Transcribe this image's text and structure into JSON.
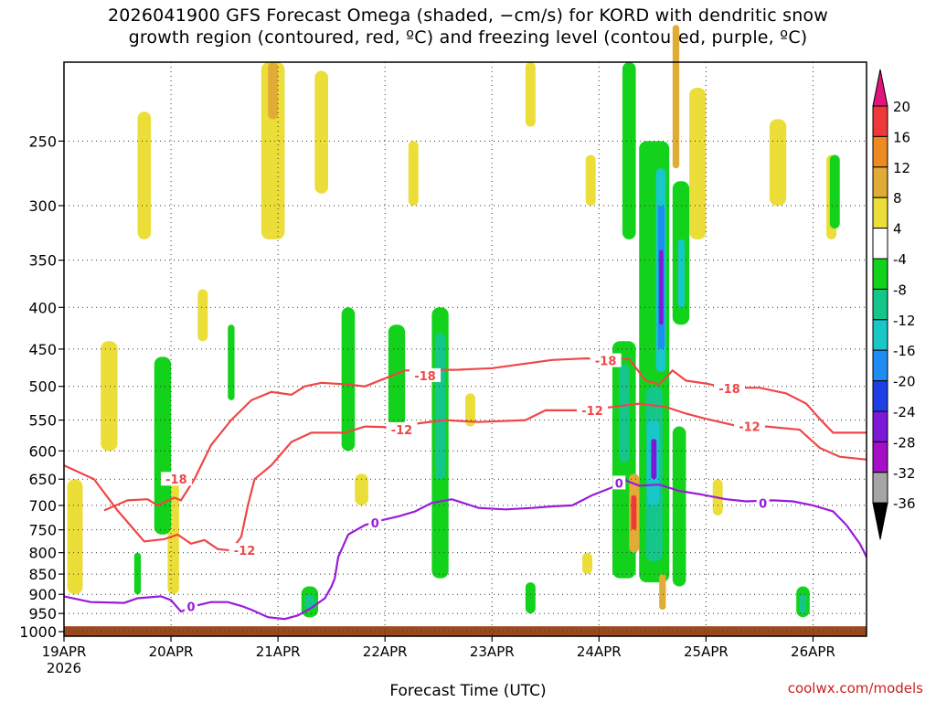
{
  "header": {
    "title_line1": "2026041900 GFS Forecast Omega (shaded, −cm/s) for KORD with dendritic snow",
    "title_line2": "growth region (contoured, red, ºC) and freezing level (contoured, purple, ºC)"
  },
  "footer": {
    "credit": "coolwx.com/models",
    "xlabel": "Forecast Time (UTC)"
  },
  "chart_data": {
    "type": "heatmap",
    "title": "2026041900 GFS Forecast Omega (shaded, −cm/s) for KORD with dendritic snow growth region (contoured, red, ºC) and freezing level (contoured, purple, ºC)",
    "xlabel": "Forecast Time (UTC)",
    "ylabel": "",
    "y_scale": "log-pressure, inverted",
    "xlim": [
      "2026-04-19T00Z",
      "2026-04-26T12Z"
    ],
    "ylim_hPa": [
      1013,
      200
    ],
    "x_ticks": [
      "19APR",
      "20APR",
      "21APR",
      "22APR",
      "23APR",
      "24APR",
      "25APR",
      "26APR"
    ],
    "x_tick_sublabel": "2026",
    "y_ticks": [
      250,
      300,
      350,
      400,
      450,
      500,
      550,
      600,
      650,
      700,
      750,
      800,
      850,
      900,
      950,
      1000
    ],
    "grid": true,
    "colorbar": {
      "labels": [
        20,
        16,
        12,
        8,
        4,
        -4,
        -8,
        -12,
        -16,
        -20,
        -24,
        -28,
        -32,
        -36
      ],
      "bins": [
        {
          "from": 20,
          "to": null,
          "color": "#e0147a"
        },
        {
          "from": 16,
          "to": 20,
          "color": "#f0373a"
        },
        {
          "from": 12,
          "to": 16,
          "color": "#ee8a22"
        },
        {
          "from": 8,
          "to": 12,
          "color": "#e1ac36"
        },
        {
          "from": 4,
          "to": 8,
          "color": "#ebde39"
        },
        {
          "from": -4,
          "to": 4,
          "color": "#ffffff"
        },
        {
          "from": -8,
          "to": -4,
          "color": "#12d21c"
        },
        {
          "from": -12,
          "to": -8,
          "color": "#15c68b"
        },
        {
          "from": -16,
          "to": -12,
          "color": "#18c7c7"
        },
        {
          "from": -20,
          "to": -16,
          "color": "#1e8cf2"
        },
        {
          "from": -24,
          "to": -20,
          "color": "#1e3ee6"
        },
        {
          "from": -28,
          "to": -24,
          "color": "#7d18d8"
        },
        {
          "from": -32,
          "to": -28,
          "color": "#a50fc8"
        },
        {
          "from": -36,
          "to": -32,
          "color": "#a5a5a5"
        },
        {
          "from": null,
          "to": -36,
          "color": "#000000"
        }
      ]
    },
    "contours": [
      {
        "label": "-18",
        "color": "#f04646",
        "points": [
          [
            0.6,
            710
          ],
          [
            0.95,
            690
          ],
          [
            1.25,
            688
          ],
          [
            1.4,
            700
          ],
          [
            1.65,
            685
          ],
          [
            1.75,
            690
          ],
          [
            1.95,
            650
          ],
          [
            2.2,
            590
          ],
          [
            2.5,
            550
          ],
          [
            2.8,
            520
          ],
          [
            3.1,
            508
          ],
          [
            3.4,
            512
          ],
          [
            3.6,
            500
          ],
          [
            3.85,
            495
          ],
          [
            4.2,
            497
          ],
          [
            4.5,
            500
          ],
          [
            5.1,
            478
          ],
          [
            5.9,
            477
          ],
          [
            6.4,
            475
          ],
          [
            7.3,
            464
          ],
          [
            7.8,
            462
          ],
          [
            8.45,
            463
          ],
          [
            8.7,
            492
          ],
          [
            8.9,
            497
          ],
          [
            9.1,
            478
          ],
          [
            9.3,
            492
          ],
          [
            9.6,
            496
          ],
          [
            9.9,
            502
          ],
          [
            10.4,
            502
          ],
          [
            10.8,
            510
          ],
          [
            11.1,
            525
          ],
          [
            11.3,
            548
          ],
          [
            11.5,
            570
          ],
          [
            12.0,
            570
          ]
        ]
      },
      {
        "label": "-12",
        "color": "#f04646",
        "points": [
          [
            0,
            625
          ],
          [
            0.45,
            650
          ],
          [
            0.8,
            710
          ],
          [
            1.2,
            775
          ],
          [
            1.5,
            770
          ],
          [
            1.7,
            760
          ],
          [
            1.9,
            780
          ],
          [
            2.1,
            772
          ],
          [
            2.3,
            792
          ],
          [
            2.5,
            795
          ],
          [
            2.65,
            765
          ],
          [
            2.75,
            700
          ],
          [
            2.85,
            650
          ],
          [
            3.1,
            625
          ],
          [
            3.4,
            585
          ],
          [
            3.7,
            570
          ],
          [
            4.2,
            570
          ],
          [
            4.5,
            560
          ],
          [
            5.1,
            562
          ],
          [
            5.3,
            555
          ],
          [
            5.7,
            550
          ],
          [
            6.2,
            553
          ],
          [
            6.9,
            550
          ],
          [
            7.2,
            535
          ],
          [
            7.8,
            535
          ],
          [
            8.2,
            530
          ],
          [
            8.6,
            525
          ],
          [
            9.0,
            530
          ],
          [
            9.3,
            540
          ],
          [
            9.6,
            548
          ],
          [
            10.1,
            560
          ],
          [
            10.5,
            560
          ],
          [
            11.0,
            565
          ],
          [
            11.3,
            595
          ],
          [
            11.6,
            610
          ],
          [
            12.0,
            615
          ]
        ]
      },
      {
        "label": "0",
        "color": "#9a1adb",
        "points": [
          [
            0,
            905
          ],
          [
            0.4,
            920
          ],
          [
            0.9,
            922
          ],
          [
            1.1,
            910
          ],
          [
            1.45,
            905
          ],
          [
            1.6,
            915
          ],
          [
            1.75,
            945
          ],
          [
            1.95,
            930
          ],
          [
            2.2,
            920
          ],
          [
            2.45,
            920
          ],
          [
            2.65,
            930
          ],
          [
            2.8,
            940
          ],
          [
            3.05,
            960
          ],
          [
            3.3,
            965
          ],
          [
            3.5,
            955
          ],
          [
            3.7,
            935
          ],
          [
            3.9,
            910
          ],
          [
            4.0,
            880
          ],
          [
            4.05,
            860
          ],
          [
            4.1,
            810
          ],
          [
            4.25,
            760
          ],
          [
            4.5,
            740
          ],
          [
            4.75,
            730
          ],
          [
            5.0,
            722
          ],
          [
            5.25,
            712
          ],
          [
            5.5,
            695
          ],
          [
            5.8,
            688
          ],
          [
            6.2,
            705
          ],
          [
            6.6,
            708
          ],
          [
            7.0,
            705
          ],
          [
            7.3,
            702
          ],
          [
            7.6,
            700
          ],
          [
            7.9,
            680
          ],
          [
            8.2,
            665
          ],
          [
            8.35,
            650
          ],
          [
            8.6,
            662
          ],
          [
            8.9,
            660
          ],
          [
            9.2,
            672
          ],
          [
            9.5,
            678
          ],
          [
            9.9,
            688
          ],
          [
            10.2,
            692
          ],
          [
            10.6,
            690
          ],
          [
            10.9,
            692
          ],
          [
            11.2,
            700
          ],
          [
            11.5,
            712
          ],
          [
            11.7,
            740
          ],
          [
            11.9,
            780
          ],
          [
            12.0,
            810
          ]
        ]
      }
    ],
    "contour_labels": [
      {
        "text": "-18",
        "x": 1.68,
        "y": 650
      },
      {
        "text": "-18",
        "x": 5.4,
        "y": 485
      },
      {
        "text": "-18",
        "x": 8.1,
        "y": 465
      },
      {
        "text": "-18",
        "x": 9.95,
        "y": 503
      },
      {
        "text": "-12",
        "x": 2.7,
        "y": 795
      },
      {
        "text": "-12",
        "x": 5.05,
        "y": 565
      },
      {
        "text": "-12",
        "x": 7.9,
        "y": 535
      },
      {
        "text": "-12",
        "x": 10.25,
        "y": 560
      },
      {
        "text": "0",
        "x": 1.9,
        "y": 932
      },
      {
        "text": "0",
        "x": 4.65,
        "y": 735
      },
      {
        "text": "0",
        "x": 8.3,
        "y": 657
      },
      {
        "text": "0",
        "x": 10.45,
        "y": 696
      }
    ],
    "omega_regions": [
      {
        "v": 6,
        "x0": 0.05,
        "x1": 0.28,
        "p0": 650,
        "p1": 900
      },
      {
        "v": 6,
        "x0": 0.55,
        "x1": 0.8,
        "p0": 440,
        "p1": 600
      },
      {
        "v": 6,
        "x0": 1.1,
        "x1": 1.3,
        "p0": 230,
        "p1": 330
      },
      {
        "v": 6,
        "x0": 1.55,
        "x1": 1.72,
        "p0": 640,
        "p1": 900
      },
      {
        "v": 6,
        "x0": 2.0,
        "x1": 2.15,
        "p0": 380,
        "p1": 440
      },
      {
        "v": 6,
        "x0": 2.95,
        "x1": 3.3,
        "p0": 200,
        "p1": 330
      },
      {
        "v": 10,
        "x0": 3.05,
        "x1": 3.2,
        "p0": 200,
        "p1": 235
      },
      {
        "v": 6,
        "x0": 3.75,
        "x1": 3.95,
        "p0": 205,
        "p1": 290
      },
      {
        "v": 6,
        "x0": 4.35,
        "x1": 4.55,
        "p0": 640,
        "p1": 700
      },
      {
        "v": 6,
        "x0": 5.15,
        "x1": 5.3,
        "p0": 250,
        "p1": 300
      },
      {
        "v": 6,
        "x0": 6.0,
        "x1": 6.15,
        "p0": 510,
        "p1": 560
      },
      {
        "v": 6,
        "x0": 6.9,
        "x1": 7.05,
        "p0": 200,
        "p1": 240
      },
      {
        "v": 6,
        "x0": 7.8,
        "x1": 7.95,
        "p0": 260,
        "p1": 300
      },
      {
        "v": 6,
        "x0": 7.75,
        "x1": 7.9,
        "p0": 800,
        "p1": 850
      },
      {
        "v": 6,
        "x0": 9.35,
        "x1": 9.6,
        "p0": 215,
        "p1": 330
      },
      {
        "v": 6,
        "x0": 10.55,
        "x1": 10.8,
        "p0": 235,
        "p1": 300
      },
      {
        "v": 6,
        "x0": 11.4,
        "x1": 11.55,
        "p0": 260,
        "p1": 330
      },
      {
        "v": 6,
        "x0": 9.7,
        "x1": 9.85,
        "p0": 650,
        "p1": 720
      },
      {
        "v": -6,
        "x0": 1.35,
        "x1": 1.6,
        "p0": 460,
        "p1": 760
      },
      {
        "v": -6,
        "x0": 1.05,
        "x1": 1.15,
        "p0": 800,
        "p1": 900
      },
      {
        "v": -6,
        "x0": 2.45,
        "x1": 2.55,
        "p0": 420,
        "p1": 520
      },
      {
        "v": -6,
        "x0": 3.55,
        "x1": 3.8,
        "p0": 880,
        "p1": 960
      },
      {
        "v": -10,
        "x0": 3.6,
        "x1": 3.75,
        "p0": 900,
        "p1": 940
      },
      {
        "v": -6,
        "x0": 4.15,
        "x1": 4.35,
        "p0": 400,
        "p1": 600
      },
      {
        "v": -6,
        "x0": 4.85,
        "x1": 5.1,
        "p0": 420,
        "p1": 560
      },
      {
        "v": -6,
        "x0": 5.5,
        "x1": 5.75,
        "p0": 400,
        "p1": 860
      },
      {
        "v": -10,
        "x0": 5.55,
        "x1": 5.7,
        "p0": 430,
        "p1": 650
      },
      {
        "v": -6,
        "x0": 6.9,
        "x1": 7.05,
        "p0": 870,
        "p1": 950
      },
      {
        "v": -6,
        "x0": 8.35,
        "x1": 8.55,
        "p0": 200,
        "p1": 330
      },
      {
        "v": -6,
        "x0": 8.2,
        "x1": 8.55,
        "p0": 440,
        "p1": 860
      },
      {
        "v": -10,
        "x0": 8.3,
        "x1": 8.45,
        "p0": 470,
        "p1": 620
      },
      {
        "v": -6,
        "x0": 8.6,
        "x1": 9.05,
        "p0": 250,
        "p1": 870
      },
      {
        "v": -10,
        "x0": 8.7,
        "x1": 8.95,
        "p0": 500,
        "p1": 820
      },
      {
        "v": -14,
        "x0": 8.85,
        "x1": 9.0,
        "p0": 270,
        "p1": 480
      },
      {
        "v": -18,
        "x0": 8.88,
        "x1": 8.98,
        "p0": 300,
        "p1": 450
      },
      {
        "v": -26,
        "x0": 8.9,
        "x1": 8.96,
        "p0": 340,
        "p1": 420
      },
      {
        "v": -14,
        "x0": 8.72,
        "x1": 8.9,
        "p0": 550,
        "p1": 700
      },
      {
        "v": -26,
        "x0": 8.78,
        "x1": 8.86,
        "p0": 580,
        "p1": 650
      },
      {
        "v": -6,
        "x0": 9.1,
        "x1": 9.35,
        "p0": 280,
        "p1": 420
      },
      {
        "v": -14,
        "x0": 9.18,
        "x1": 9.28,
        "p0": 330,
        "p1": 400
      },
      {
        "v": -6,
        "x0": 9.1,
        "x1": 9.3,
        "p0": 560,
        "p1": 880
      },
      {
        "v": -6,
        "x0": 10.95,
        "x1": 11.15,
        "p0": 880,
        "p1": 960
      },
      {
        "v": -10,
        "x0": 11.0,
        "x1": 11.1,
        "p0": 900,
        "p1": 950
      },
      {
        "v": -6,
        "x0": 11.45,
        "x1": 11.6,
        "p0": 260,
        "p1": 320
      },
      {
        "v": 10,
        "x0": 8.45,
        "x1": 8.6,
        "p0": 640,
        "p1": 800
      },
      {
        "v": 18,
        "x0": 8.48,
        "x1": 8.56,
        "p0": 680,
        "p1": 750
      },
      {
        "v": 10,
        "x0": 8.9,
        "x1": 9.0,
        "p0": 850,
        "p1": 940
      },
      {
        "v": 10,
        "x0": 9.1,
        "x1": 9.2,
        "p0": 180,
        "p1": 270
      }
    ]
  }
}
